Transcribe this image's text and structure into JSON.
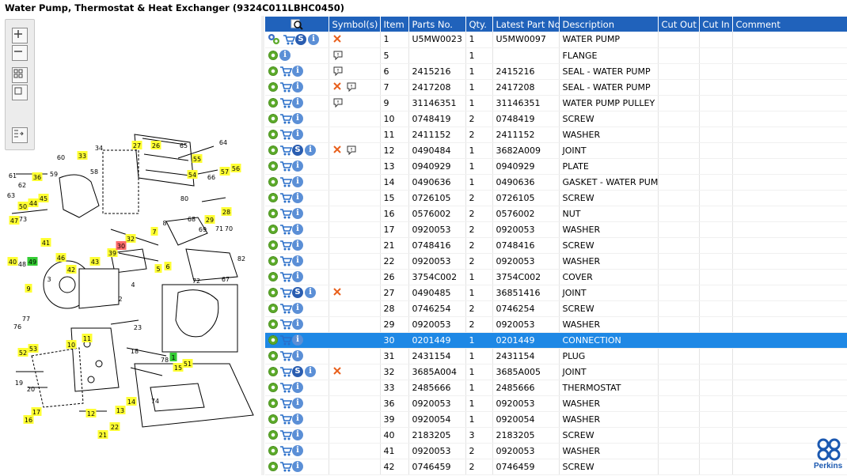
{
  "window": {
    "title": "Water Pump, Thermostat & Heat Exchanger (9324C011LBHC0450)"
  },
  "toolbar": {
    "buttons": [
      "zoom-in",
      "zoom-out",
      "fit-all",
      "fit-window",
      "export"
    ]
  },
  "brand": {
    "name": "Perkins",
    "accent": "#2062bb"
  },
  "colors": {
    "header_bg": "#2062bb",
    "selected_row": "#1e88e5",
    "callout_yellow": "#ffff33",
    "callout_red": "#ff6b6b",
    "callout_green": "#33cc33"
  },
  "grid": {
    "columns": [
      "",
      "Symbol(s)",
      "Item",
      "Parts No.",
      "Qty.",
      "Latest Part No.",
      "Description",
      "Cut Out",
      "Cut In",
      "Comment"
    ],
    "rows": [
      {
        "item": "1",
        "part": "U5MW0023",
        "qty": "1",
        "latest": "U5MW0097",
        "desc": "WATER PUMP",
        "icons": [
          "multi-gear",
          "cart",
          "s",
          "info"
        ],
        "symbols": [
          "x"
        ]
      },
      {
        "item": "5",
        "part": "",
        "qty": "1",
        "latest": "",
        "desc": "FLANGE",
        "icons": [
          "gear",
          "info"
        ],
        "symbols": [
          "note"
        ]
      },
      {
        "item": "6",
        "part": "2415216",
        "qty": "1",
        "latest": "2415216",
        "desc": "SEAL - WATER PUMP",
        "icons": [
          "gear",
          "cart",
          "info"
        ],
        "symbols": [
          "note"
        ]
      },
      {
        "item": "7",
        "part": "2417208",
        "qty": "1",
        "latest": "2417208",
        "desc": "SEAL - WATER PUMP",
        "icons": [
          "gear",
          "cart",
          "info"
        ],
        "symbols": [
          "x",
          "note"
        ]
      },
      {
        "item": "9",
        "part": "31146351",
        "qty": "1",
        "latest": "31146351",
        "desc": "WATER PUMP PULLEY",
        "icons": [
          "gear",
          "cart",
          "info"
        ],
        "symbols": [
          "note"
        ]
      },
      {
        "item": "10",
        "part": "0748419",
        "qty": "2",
        "latest": "0748419",
        "desc": "SCREW",
        "icons": [
          "gear",
          "cart",
          "info"
        ],
        "symbols": []
      },
      {
        "item": "11",
        "part": "2411152",
        "qty": "2",
        "latest": "2411152",
        "desc": "WASHER",
        "icons": [
          "gear",
          "cart",
          "info"
        ],
        "symbols": []
      },
      {
        "item": "12",
        "part": "0490484",
        "qty": "1",
        "latest": "3682A009",
        "desc": "JOINT",
        "icons": [
          "gear",
          "cart",
          "s",
          "info"
        ],
        "symbols": [
          "x",
          "note"
        ]
      },
      {
        "item": "13",
        "part": "0940929",
        "qty": "1",
        "latest": "0940929",
        "desc": "PLATE",
        "icons": [
          "gear",
          "cart",
          "info"
        ],
        "symbols": []
      },
      {
        "item": "14",
        "part": "0490636",
        "qty": "1",
        "latest": "0490636",
        "desc": "GASKET - WATER PUMP",
        "icons": [
          "gear",
          "cart",
          "info"
        ],
        "symbols": []
      },
      {
        "item": "15",
        "part": "0726105",
        "qty": "2",
        "latest": "0726105",
        "desc": "SCREW",
        "icons": [
          "gear",
          "cart",
          "info"
        ],
        "symbols": []
      },
      {
        "item": "16",
        "part": "0576002",
        "qty": "2",
        "latest": "0576002",
        "desc": "NUT",
        "icons": [
          "gear",
          "cart",
          "info"
        ],
        "symbols": []
      },
      {
        "item": "17",
        "part": "0920053",
        "qty": "2",
        "latest": "0920053",
        "desc": "WASHER",
        "icons": [
          "gear",
          "cart",
          "info"
        ],
        "symbols": []
      },
      {
        "item": "21",
        "part": "0748416",
        "qty": "2",
        "latest": "0748416",
        "desc": "SCREW",
        "icons": [
          "gear",
          "cart",
          "info"
        ],
        "symbols": []
      },
      {
        "item": "22",
        "part": "0920053",
        "qty": "2",
        "latest": "0920053",
        "desc": "WASHER",
        "icons": [
          "gear",
          "cart",
          "info"
        ],
        "symbols": []
      },
      {
        "item": "26",
        "part": "3754C002",
        "qty": "1",
        "latest": "3754C002",
        "desc": "COVER",
        "icons": [
          "gear",
          "cart",
          "info"
        ],
        "symbols": []
      },
      {
        "item": "27",
        "part": "0490485",
        "qty": "1",
        "latest": "36851416",
        "desc": "JOINT",
        "icons": [
          "gear",
          "cart",
          "s",
          "info"
        ],
        "symbols": [
          "x"
        ]
      },
      {
        "item": "28",
        "part": "0746254",
        "qty": "2",
        "latest": "0746254",
        "desc": "SCREW",
        "icons": [
          "gear",
          "cart",
          "info"
        ],
        "symbols": []
      },
      {
        "item": "29",
        "part": "0920053",
        "qty": "2",
        "latest": "0920053",
        "desc": "WASHER",
        "icons": [
          "gear",
          "cart",
          "info"
        ],
        "symbols": []
      },
      {
        "item": "30",
        "part": "0201449",
        "qty": "1",
        "latest": "0201449",
        "desc": "CONNECTION",
        "icons": [
          "gear",
          "cart",
          "info"
        ],
        "symbols": [],
        "selected": true
      },
      {
        "item": "31",
        "part": "2431154",
        "qty": "1",
        "latest": "2431154",
        "desc": "PLUG",
        "icons": [
          "gear",
          "cart",
          "info"
        ],
        "symbols": []
      },
      {
        "item": "32",
        "part": "3685A004",
        "qty": "1",
        "latest": "3685A005",
        "desc": "JOINT",
        "icons": [
          "gear",
          "cart",
          "s",
          "info"
        ],
        "symbols": [
          "x"
        ]
      },
      {
        "item": "33",
        "part": "2485666",
        "qty": "1",
        "latest": "2485666",
        "desc": "THERMOSTAT",
        "icons": [
          "gear",
          "cart",
          "info"
        ],
        "symbols": []
      },
      {
        "item": "36",
        "part": "0920053",
        "qty": "1",
        "latest": "0920053",
        "desc": "WASHER",
        "icons": [
          "gear",
          "cart",
          "info"
        ],
        "symbols": []
      },
      {
        "item": "39",
        "part": "0920054",
        "qty": "1",
        "latest": "0920054",
        "desc": "WASHER",
        "icons": [
          "gear",
          "cart",
          "info"
        ],
        "symbols": []
      },
      {
        "item": "40",
        "part": "2183205",
        "qty": "3",
        "latest": "2183205",
        "desc": "SCREW",
        "icons": [
          "gear",
          "cart",
          "info"
        ],
        "symbols": []
      },
      {
        "item": "41",
        "part": "0920053",
        "qty": "2",
        "latest": "0920053",
        "desc": "WASHER",
        "icons": [
          "gear",
          "cart",
          "info"
        ],
        "symbols": []
      },
      {
        "item": "42",
        "part": "0746459",
        "qty": "2",
        "latest": "0746459",
        "desc": "SCREW",
        "icons": [
          "gear",
          "cart",
          "info"
        ],
        "symbols": []
      }
    ]
  },
  "diagram": {
    "callouts": [
      {
        "n": "27",
        "c": "y"
      },
      {
        "n": "26",
        "c": "y"
      },
      {
        "n": "33",
        "c": "y"
      },
      {
        "n": "55",
        "c": "y"
      },
      {
        "n": "56",
        "c": "y"
      },
      {
        "n": "54",
        "c": "y"
      },
      {
        "n": "57",
        "c": "y"
      },
      {
        "n": "36",
        "c": "y"
      },
      {
        "n": "45",
        "c": "y"
      },
      {
        "n": "44",
        "c": "y"
      },
      {
        "n": "50",
        "c": "y"
      },
      {
        "n": "47",
        "c": "y"
      },
      {
        "n": "28",
        "c": "y"
      },
      {
        "n": "29",
        "c": "y"
      },
      {
        "n": "7",
        "c": "y"
      },
      {
        "n": "32",
        "c": "y"
      },
      {
        "n": "39",
        "c": "y"
      },
      {
        "n": "30",
        "c": "r"
      },
      {
        "n": "41",
        "c": "y"
      },
      {
        "n": "46",
        "c": "y"
      },
      {
        "n": "43",
        "c": "y"
      },
      {
        "n": "42",
        "c": "y"
      },
      {
        "n": "49",
        "c": "g"
      },
      {
        "n": "6",
        "c": "y"
      },
      {
        "n": "5",
        "c": "y"
      },
      {
        "n": "9",
        "c": "y"
      },
      {
        "n": "10",
        "c": "y"
      },
      {
        "n": "11",
        "c": "y"
      },
      {
        "n": "52",
        "c": "y"
      },
      {
        "n": "53",
        "c": "y"
      },
      {
        "n": "15",
        "c": "y"
      },
      {
        "n": "51",
        "c": "y"
      },
      {
        "n": "1",
        "c": "g"
      },
      {
        "n": "14",
        "c": "y"
      },
      {
        "n": "13",
        "c": "y"
      },
      {
        "n": "12",
        "c": "y"
      },
      {
        "n": "17",
        "c": "y"
      },
      {
        "n": "16",
        "c": "y"
      },
      {
        "n": "22",
        "c": "y"
      },
      {
        "n": "21",
        "c": "y"
      },
      {
        "n": "40",
        "c": "y"
      }
    ],
    "labels": [
      "34",
      "58",
      "65",
      "64",
      "60",
      "61",
      "62",
      "59",
      "63",
      "66",
      "80",
      "68",
      "69",
      "71",
      "70",
      "82",
      "67",
      "73",
      "48",
      "3",
      "2",
      "4",
      "8",
      "72",
      "76",
      "77",
      "23",
      "18",
      "78",
      "19",
      "20",
      "74"
    ]
  }
}
